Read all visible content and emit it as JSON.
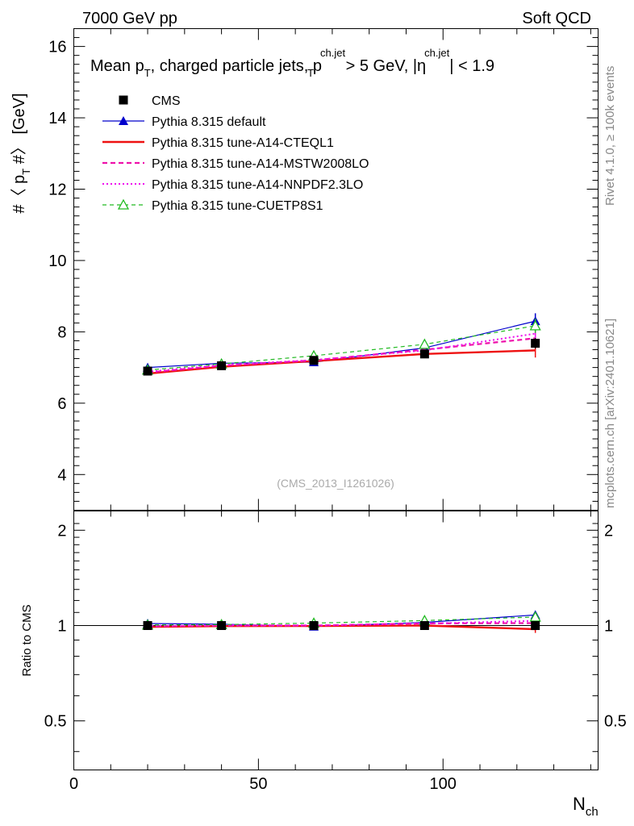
{
  "header": {
    "left": "7000 GeV pp",
    "right": "Soft QCD"
  },
  "side_labels": {
    "rivet": "Rivet 4.1.0, ≥ 100k events",
    "mcplots": "mcplots.cern.ch [arXiv:2401.10621]"
  },
  "colors": {
    "cms": "#000000",
    "default": "#0000cc",
    "cteql1": "#ee1111",
    "mstw": "#ee11aa",
    "nnpdf": "#ee11ee",
    "cuetp8s1": "#22bb22"
  },
  "chart_data": {
    "type": "line",
    "title": "Mean pT, charged particle jets, pT ch.jet > 5 GeV, |η ch.jet| < 1.9",
    "title_parts": {
      "a": "Mean p",
      "a_sub": "T",
      "b": ", charged particle jets, p",
      "b_sup": "ch.jet",
      "b_sub": "T",
      "c": " > 5 GeV,  |η",
      "c_sup": "ch.jet",
      "d": "| < 1.9"
    },
    "watermark": "(CMS_2013_I1261026)",
    "xlabel": "N",
    "xlabel_sub": "ch",
    "ylabel": "#〈 p",
    "ylabel_sub": "T",
    "ylabel_end": " #〉 [GeV]",
    "ratio_ylabel": "Ratio to CMS",
    "xlim": [
      0,
      142
    ],
    "ylim": [
      3,
      16.5
    ],
    "ratio_ylim": [
      0.35,
      2.3
    ],
    "x_ticks": [
      "0",
      "50",
      "100"
    ],
    "y_ticks": [
      "4",
      "6",
      "8",
      "10",
      "12",
      "14",
      "16"
    ],
    "ratio_ticks": [
      "0.5",
      "1",
      "2"
    ],
    "x": [
      20,
      40,
      65,
      95,
      125
    ],
    "series": [
      {
        "name": "CMS",
        "key": "cms",
        "style": "data",
        "values": [
          6.9,
          7.05,
          7.2,
          7.38,
          7.68
        ],
        "errors": [
          0.08,
          0.08,
          0.08,
          0.1,
          0.15
        ]
      },
      {
        "name": "Pythia 8.315 default",
        "key": "default",
        "style": "solid-thin",
        "marker": "triangle-filled",
        "values": [
          7.0,
          7.12,
          7.15,
          7.55,
          8.3
        ],
        "errors": [
          0.05,
          0.05,
          0.05,
          0.08,
          0.22
        ],
        "ratio": [
          1.015,
          1.01,
          0.993,
          1.023,
          1.08
        ]
      },
      {
        "name": "Pythia 8.315 tune-A14-CTEQL1",
        "key": "cteql1",
        "style": "solid-thick",
        "marker": "none",
        "values": [
          6.83,
          7.02,
          7.18,
          7.38,
          7.48
        ],
        "errors": [
          0.05,
          0.05,
          0.05,
          0.08,
          0.2
        ],
        "ratio": [
          0.99,
          0.996,
          0.997,
          1.0,
          0.974
        ]
      },
      {
        "name": "Pythia 8.315 tune-A14-MSTW2008LO",
        "key": "mstw",
        "style": "dashed",
        "marker": "none",
        "values": [
          6.86,
          7.05,
          7.2,
          7.5,
          7.82
        ],
        "errors": [
          0.05,
          0.05,
          0.05,
          0.08,
          0.2
        ],
        "ratio": [
          0.994,
          1.0,
          1.0,
          1.016,
          1.018
        ]
      },
      {
        "name": "Pythia 8.315 tune-A14-NNPDF2.3LO",
        "key": "nnpdf",
        "style": "dotted",
        "marker": "none",
        "values": [
          6.88,
          7.07,
          7.21,
          7.48,
          7.95
        ],
        "errors": [
          0.05,
          0.05,
          0.05,
          0.08,
          0.2
        ],
        "ratio": [
          0.997,
          1.003,
          1.001,
          1.014,
          1.035
        ]
      },
      {
        "name": "Pythia 8.315 tune-CUETP8S1",
        "key": "cuetp8s1",
        "style": "dashed-thin",
        "marker": "triangle-open",
        "values": [
          6.93,
          7.1,
          7.33,
          7.65,
          8.17
        ],
        "errors": [
          0.05,
          0.05,
          0.05,
          0.08,
          0.2
        ],
        "ratio": [
          1.004,
          1.007,
          1.018,
          1.037,
          1.064
        ]
      }
    ]
  }
}
